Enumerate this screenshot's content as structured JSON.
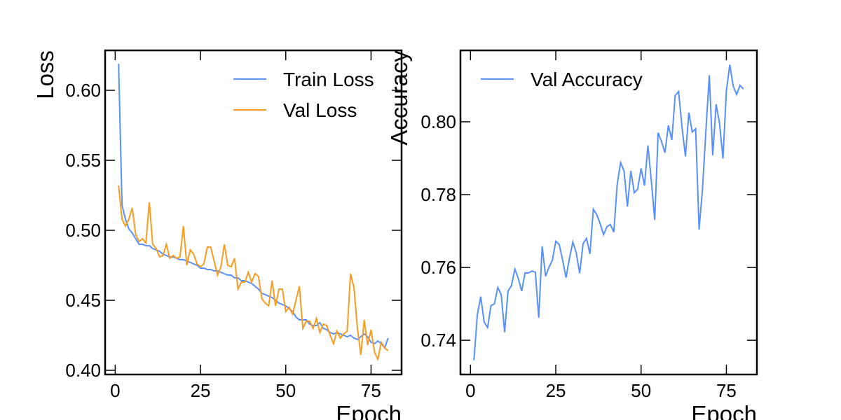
{
  "chart_data": [
    {
      "type": "line",
      "xlabel": "Epoch",
      "ylabel": "Loss",
      "legend": "upper right",
      "x": [
        1,
        2,
        3,
        4,
        5,
        6,
        7,
        8,
        9,
        10,
        11,
        12,
        13,
        14,
        15,
        16,
        17,
        18,
        19,
        20,
        21,
        22,
        23,
        24,
        25,
        26,
        27,
        28,
        29,
        30,
        31,
        32,
        33,
        34,
        35,
        36,
        37,
        38,
        39,
        40,
        41,
        42,
        43,
        44,
        45,
        46,
        47,
        48,
        49,
        50,
        51,
        52,
        53,
        54,
        55,
        56,
        57,
        58,
        59,
        60,
        61,
        62,
        63,
        64,
        65,
        66,
        67,
        68,
        69,
        70,
        71,
        72,
        73,
        74,
        75,
        76,
        77,
        78,
        79,
        80
      ],
      "series": [
        {
          "name": "Train Loss",
          "color": "#5790fc",
          "values": [
            0.619,
            0.518,
            0.508,
            0.501,
            0.498,
            0.494,
            0.49,
            0.49,
            0.489,
            0.489,
            0.487,
            0.486,
            0.485,
            0.483,
            0.482,
            0.481,
            0.481,
            0.48,
            0.479,
            0.479,
            0.478,
            0.477,
            0.476,
            0.475,
            0.473,
            0.473,
            0.472,
            0.472,
            0.471,
            0.471,
            0.47,
            0.469,
            0.468,
            0.468,
            0.466,
            0.466,
            0.464,
            0.464,
            0.463,
            0.462,
            0.46,
            0.458,
            0.455,
            0.454,
            0.453,
            0.452,
            0.45,
            0.448,
            0.447,
            0.446,
            0.444,
            0.442,
            0.438,
            0.436,
            0.436,
            0.436,
            0.433,
            0.432,
            0.432,
            0.434,
            0.43,
            0.429,
            0.427,
            0.426,
            0.427,
            0.426,
            0.425,
            0.424,
            0.425,
            0.423,
            0.422,
            0.424,
            0.426,
            0.424,
            0.42,
            0.419,
            0.421,
            0.419,
            0.416,
            0.423
          ]
        },
        {
          "name": "Val Loss",
          "color": "#f89c20",
          "values": [
            0.532,
            0.508,
            0.503,
            0.508,
            0.516,
            0.497,
            0.492,
            0.494,
            0.491,
            0.52,
            0.49,
            0.487,
            0.481,
            0.482,
            0.49,
            0.48,
            0.482,
            0.48,
            0.481,
            0.503,
            0.475,
            0.486,
            0.483,
            0.476,
            0.474,
            0.476,
            0.488,
            0.488,
            0.478,
            0.468,
            0.474,
            0.49,
            0.475,
            0.474,
            0.48,
            0.458,
            0.463,
            0.463,
            0.47,
            0.463,
            0.469,
            0.467,
            0.451,
            0.448,
            0.446,
            0.464,
            0.446,
            0.458,
            0.458,
            0.442,
            0.445,
            0.44,
            0.45,
            0.46,
            0.43,
            0.435,
            0.435,
            0.43,
            0.437,
            0.427,
            0.433,
            0.432,
            0.425,
            0.419,
            0.428,
            0.423,
            0.426,
            0.428,
            0.469,
            0.459,
            0.43,
            0.411,
            0.436,
            0.418,
            0.429,
            0.413,
            0.408,
            0.42,
            0.416,
            0.414
          ]
        }
      ],
      "xlim": [
        -2.95,
        83.95
      ],
      "xticks": [
        0,
        25,
        50,
        75
      ],
      "ylim": [
        0.397,
        0.6285
      ],
      "yticks": [
        {
          "value": 0.4,
          "label": "0.40"
        },
        0.45,
        {
          "value": 0.5,
          "label": "0.50"
        },
        0.55,
        {
          "value": 0.6,
          "label": "0.60"
        }
      ]
    },
    {
      "type": "line",
      "xlabel": "Epoch",
      "ylabel": "Accuracy",
      "legend": "upper left",
      "x": [
        1,
        2,
        3,
        4,
        5,
        6,
        7,
        8,
        9,
        10,
        11,
        12,
        13,
        14,
        15,
        16,
        17,
        18,
        19,
        20,
        21,
        22,
        23,
        24,
        25,
        26,
        27,
        28,
        29,
        30,
        31,
        32,
        33,
        34,
        35,
        36,
        37,
        38,
        39,
        40,
        41,
        42,
        43,
        44,
        45,
        46,
        47,
        48,
        49,
        50,
        51,
        52,
        53,
        54,
        55,
        56,
        57,
        58,
        59,
        60,
        61,
        62,
        63,
        64,
        65,
        66,
        67,
        68,
        69,
        70,
        71,
        72,
        73,
        74,
        75,
        76,
        77,
        78,
        79,
        80
      ],
      "series": [
        {
          "name": "Val Accuracy",
          "color": "#5790fc",
          "values": [
            0.7345,
            0.747,
            0.752,
            0.745,
            0.7435,
            0.7495,
            0.75,
            0.7545,
            0.7525,
            0.7422,
            0.7535,
            0.755,
            0.7595,
            0.757,
            0.7535,
            0.7585,
            0.7585,
            0.759,
            0.7587,
            0.7462,
            0.7658,
            0.7576,
            0.76,
            0.762,
            0.7672,
            0.7663,
            0.762,
            0.7572,
            0.7625,
            0.767,
            0.764,
            0.7584,
            0.7665,
            0.768,
            0.7637,
            0.776,
            0.7745,
            0.772,
            0.769,
            0.7712,
            0.7718,
            0.7697,
            0.7828,
            0.7888,
            0.7865,
            0.7767,
            0.7865,
            0.7805,
            0.7815,
            0.7872,
            0.7825,
            0.7935,
            0.7838,
            0.773,
            0.797,
            0.7945,
            0.7915,
            0.799,
            0.795,
            0.8072,
            0.8083,
            0.7985,
            0.7905,
            0.8025,
            0.7972,
            0.7981,
            0.7704,
            0.7815,
            0.7975,
            0.8128,
            0.7908,
            0.8048,
            0.7995,
            0.7899,
            0.8085,
            0.8157,
            0.8098,
            0.8075,
            0.81,
            0.809
          ]
        }
      ],
      "xlim": [
        -2.95,
        83.95
      ],
      "xticks": [
        0,
        25,
        50,
        75
      ],
      "ylim": [
        0.7306,
        0.8196
      ],
      "yticks": [
        {
          "value": 0.74,
          "label": "0.74"
        },
        0.76,
        0.78,
        {
          "value": 0.8,
          "label": "0.80"
        }
      ]
    }
  ]
}
